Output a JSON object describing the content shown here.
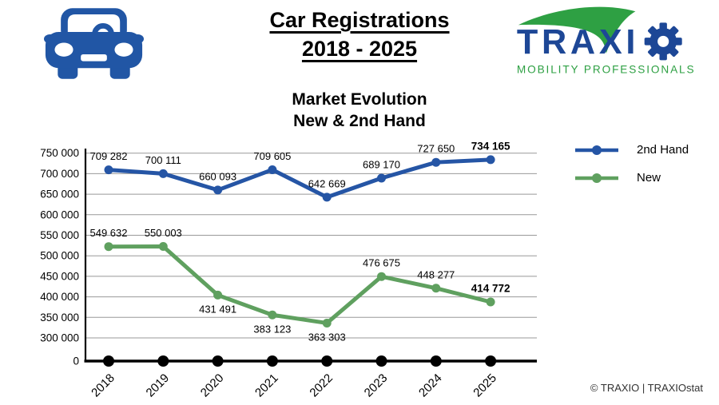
{
  "header": {
    "title_line1": "Car Registrations",
    "title_line2": "2018 - 2025",
    "logo": {
      "text_before_gear": "TRAXI",
      "tagline": "MOBILITY PROFESSIONALS"
    }
  },
  "chart": {
    "title_line1": "Market Evolution",
    "title_line2": "New & 2nd Hand"
  },
  "colors": {
    "car_blue": "#2156a5",
    "brand_blue": "#1d4796",
    "brand_green": "#2ea043",
    "grid_gray": "#999999",
    "axis_black": "#000000"
  },
  "chart_data": {
    "type": "line",
    "title": "Market Evolution New & 2nd Hand",
    "categories": [
      "2018",
      "2019",
      "2020",
      "2021",
      "2022",
      "2023",
      "2024",
      "2025"
    ],
    "series": [
      {
        "name": "2nd Hand",
        "color": "#2555a5",
        "values": [
          709282,
          700111,
          660093,
          709605,
          642669,
          689170,
          727650,
          734165
        ],
        "labels": [
          "709 282",
          "700 111",
          "660 093",
          "709 605",
          "642 669",
          "689 170",
          "727 650",
          "734 165"
        ],
        "label_side": [
          "above",
          "above",
          "above",
          "above",
          "above",
          "above",
          "above",
          "above"
        ],
        "last_label_bold": true
      },
      {
        "name": "New",
        "color": "#5fa05f",
        "values": [
          549632,
          550003,
          431491,
          383123,
          363303,
          476675,
          448277,
          414772
        ],
        "labels": [
          "549 632",
          "550 003",
          "431 491",
          "383 123",
          "363 303",
          "476 675",
          "448 277",
          "414 772"
        ],
        "label_side": [
          "above",
          "above",
          "below",
          "below",
          "below",
          "above",
          "above",
          "above"
        ],
        "last_label_bold": true
      }
    ],
    "y_axis": {
      "broken_axis": true,
      "ticks": [
        {
          "label": "750 000",
          "value": 750000
        },
        {
          "label": "700 000",
          "value": 700000
        },
        {
          "label": "650 000",
          "value": 650000
        },
        {
          "label": "600 000",
          "value": 600000
        },
        {
          "label": "550 000",
          "value": 550000
        },
        {
          "label": "500 000",
          "value": 500000
        },
        {
          "label": "450 000",
          "value": 450000
        },
        {
          "label": "400 000",
          "value": 400000
        },
        {
          "label": "350 000",
          "value": 350000
        },
        {
          "label": "300 000",
          "value": 300000
        },
        {
          "label": "0",
          "value": 0
        }
      ]
    },
    "x_axis": {
      "label_rotation": -45,
      "zero_marker_color": "#000000"
    },
    "grid": true,
    "legend_position": "right"
  },
  "footer": {
    "copyright": "© TRAXIO | TRAXIOstat"
  }
}
